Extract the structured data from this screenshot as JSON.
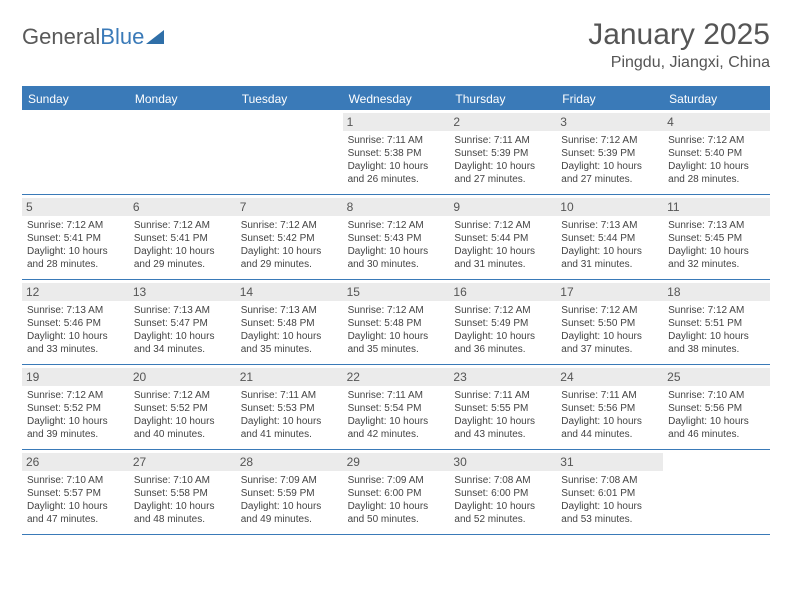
{
  "logo": {
    "word1": "General",
    "word2": "Blue"
  },
  "title": "January 2025",
  "location": "Pingdu, Jiangxi, China",
  "colors": {
    "accent": "#3a7ab8",
    "header_bg": "#3a7ab8",
    "date_bg": "#ebebeb",
    "text_primary": "#555555",
    "text_body": "#444444",
    "background": "#ffffff"
  },
  "typography": {
    "title_fontsize": 30,
    "location_fontsize": 16,
    "day_header_fontsize": 12,
    "date_fontsize": 12,
    "body_fontsize": 10
  },
  "dayHeaders": [
    "Sunday",
    "Monday",
    "Tuesday",
    "Wednesday",
    "Thursday",
    "Friday",
    "Saturday"
  ],
  "weeks": [
    [
      {
        "empty": true
      },
      {
        "empty": true
      },
      {
        "empty": true
      },
      {
        "date": "1",
        "sunrise": "Sunrise: 7:11 AM",
        "sunset": "Sunset: 5:38 PM",
        "daylight": "Daylight: 10 hours and 26 minutes."
      },
      {
        "date": "2",
        "sunrise": "Sunrise: 7:11 AM",
        "sunset": "Sunset: 5:39 PM",
        "daylight": "Daylight: 10 hours and 27 minutes."
      },
      {
        "date": "3",
        "sunrise": "Sunrise: 7:12 AM",
        "sunset": "Sunset: 5:39 PM",
        "daylight": "Daylight: 10 hours and 27 minutes."
      },
      {
        "date": "4",
        "sunrise": "Sunrise: 7:12 AM",
        "sunset": "Sunset: 5:40 PM",
        "daylight": "Daylight: 10 hours and 28 minutes."
      }
    ],
    [
      {
        "date": "5",
        "sunrise": "Sunrise: 7:12 AM",
        "sunset": "Sunset: 5:41 PM",
        "daylight": "Daylight: 10 hours and 28 minutes."
      },
      {
        "date": "6",
        "sunrise": "Sunrise: 7:12 AM",
        "sunset": "Sunset: 5:41 PM",
        "daylight": "Daylight: 10 hours and 29 minutes."
      },
      {
        "date": "7",
        "sunrise": "Sunrise: 7:12 AM",
        "sunset": "Sunset: 5:42 PM",
        "daylight": "Daylight: 10 hours and 29 minutes."
      },
      {
        "date": "8",
        "sunrise": "Sunrise: 7:12 AM",
        "sunset": "Sunset: 5:43 PM",
        "daylight": "Daylight: 10 hours and 30 minutes."
      },
      {
        "date": "9",
        "sunrise": "Sunrise: 7:12 AM",
        "sunset": "Sunset: 5:44 PM",
        "daylight": "Daylight: 10 hours and 31 minutes."
      },
      {
        "date": "10",
        "sunrise": "Sunrise: 7:13 AM",
        "sunset": "Sunset: 5:44 PM",
        "daylight": "Daylight: 10 hours and 31 minutes."
      },
      {
        "date": "11",
        "sunrise": "Sunrise: 7:13 AM",
        "sunset": "Sunset: 5:45 PM",
        "daylight": "Daylight: 10 hours and 32 minutes."
      }
    ],
    [
      {
        "date": "12",
        "sunrise": "Sunrise: 7:13 AM",
        "sunset": "Sunset: 5:46 PM",
        "daylight": "Daylight: 10 hours and 33 minutes."
      },
      {
        "date": "13",
        "sunrise": "Sunrise: 7:13 AM",
        "sunset": "Sunset: 5:47 PM",
        "daylight": "Daylight: 10 hours and 34 minutes."
      },
      {
        "date": "14",
        "sunrise": "Sunrise: 7:13 AM",
        "sunset": "Sunset: 5:48 PM",
        "daylight": "Daylight: 10 hours and 35 minutes."
      },
      {
        "date": "15",
        "sunrise": "Sunrise: 7:12 AM",
        "sunset": "Sunset: 5:48 PM",
        "daylight": "Daylight: 10 hours and 35 minutes."
      },
      {
        "date": "16",
        "sunrise": "Sunrise: 7:12 AM",
        "sunset": "Sunset: 5:49 PM",
        "daylight": "Daylight: 10 hours and 36 minutes."
      },
      {
        "date": "17",
        "sunrise": "Sunrise: 7:12 AM",
        "sunset": "Sunset: 5:50 PM",
        "daylight": "Daylight: 10 hours and 37 minutes."
      },
      {
        "date": "18",
        "sunrise": "Sunrise: 7:12 AM",
        "sunset": "Sunset: 5:51 PM",
        "daylight": "Daylight: 10 hours and 38 minutes."
      }
    ],
    [
      {
        "date": "19",
        "sunrise": "Sunrise: 7:12 AM",
        "sunset": "Sunset: 5:52 PM",
        "daylight": "Daylight: 10 hours and 39 minutes."
      },
      {
        "date": "20",
        "sunrise": "Sunrise: 7:12 AM",
        "sunset": "Sunset: 5:52 PM",
        "daylight": "Daylight: 10 hours and 40 minutes."
      },
      {
        "date": "21",
        "sunrise": "Sunrise: 7:11 AM",
        "sunset": "Sunset: 5:53 PM",
        "daylight": "Daylight: 10 hours and 41 minutes."
      },
      {
        "date": "22",
        "sunrise": "Sunrise: 7:11 AM",
        "sunset": "Sunset: 5:54 PM",
        "daylight": "Daylight: 10 hours and 42 minutes."
      },
      {
        "date": "23",
        "sunrise": "Sunrise: 7:11 AM",
        "sunset": "Sunset: 5:55 PM",
        "daylight": "Daylight: 10 hours and 43 minutes."
      },
      {
        "date": "24",
        "sunrise": "Sunrise: 7:11 AM",
        "sunset": "Sunset: 5:56 PM",
        "daylight": "Daylight: 10 hours and 44 minutes."
      },
      {
        "date": "25",
        "sunrise": "Sunrise: 7:10 AM",
        "sunset": "Sunset: 5:56 PM",
        "daylight": "Daylight: 10 hours and 46 minutes."
      }
    ],
    [
      {
        "date": "26",
        "sunrise": "Sunrise: 7:10 AM",
        "sunset": "Sunset: 5:57 PM",
        "daylight": "Daylight: 10 hours and 47 minutes."
      },
      {
        "date": "27",
        "sunrise": "Sunrise: 7:10 AM",
        "sunset": "Sunset: 5:58 PM",
        "daylight": "Daylight: 10 hours and 48 minutes."
      },
      {
        "date": "28",
        "sunrise": "Sunrise: 7:09 AM",
        "sunset": "Sunset: 5:59 PM",
        "daylight": "Daylight: 10 hours and 49 minutes."
      },
      {
        "date": "29",
        "sunrise": "Sunrise: 7:09 AM",
        "sunset": "Sunset: 6:00 PM",
        "daylight": "Daylight: 10 hours and 50 minutes."
      },
      {
        "date": "30",
        "sunrise": "Sunrise: 7:08 AM",
        "sunset": "Sunset: 6:00 PM",
        "daylight": "Daylight: 10 hours and 52 minutes."
      },
      {
        "date": "31",
        "sunrise": "Sunrise: 7:08 AM",
        "sunset": "Sunset: 6:01 PM",
        "daylight": "Daylight: 10 hours and 53 minutes."
      },
      {
        "empty": true
      }
    ]
  ]
}
